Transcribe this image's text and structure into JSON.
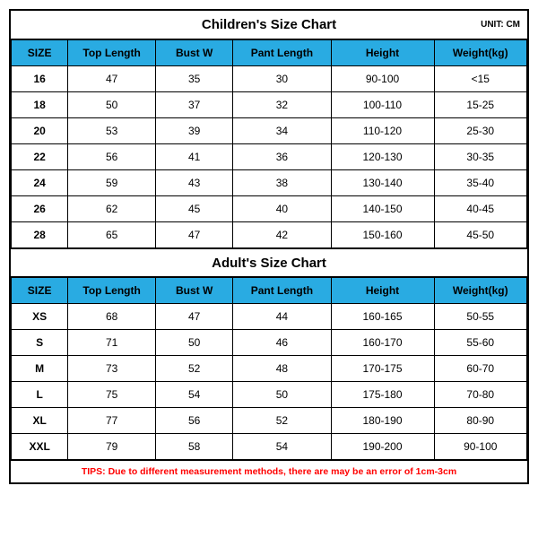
{
  "unit_label": "UNIT: CM",
  "header_bg": "#29abe2",
  "children": {
    "title": "Children's Size Chart",
    "columns": [
      "SIZE",
      "Top Length",
      "Bust W",
      "Pant Length",
      "Height",
      "Weight(kg)"
    ],
    "rows": [
      [
        "16",
        "47",
        "35",
        "30",
        "90-100",
        "<15"
      ],
      [
        "18",
        "50",
        "37",
        "32",
        "100-110",
        "15-25"
      ],
      [
        "20",
        "53",
        "39",
        "34",
        "110-120",
        "25-30"
      ],
      [
        "22",
        "56",
        "41",
        "36",
        "120-130",
        "30-35"
      ],
      [
        "24",
        "59",
        "43",
        "38",
        "130-140",
        "35-40"
      ],
      [
        "26",
        "62",
        "45",
        "40",
        "140-150",
        "40-45"
      ],
      [
        "28",
        "65",
        "47",
        "42",
        "150-160",
        "45-50"
      ]
    ]
  },
  "adult": {
    "title": "Adult's Size Chart",
    "columns": [
      "SIZE",
      "Top Length",
      "Bust W",
      "Pant Length",
      "Height",
      "Weight(kg)"
    ],
    "rows": [
      [
        "XS",
        "68",
        "47",
        "44",
        "160-165",
        "50-55"
      ],
      [
        "S",
        "71",
        "50",
        "46",
        "160-170",
        "55-60"
      ],
      [
        "M",
        "73",
        "52",
        "48",
        "170-175",
        "60-70"
      ],
      [
        "L",
        "75",
        "54",
        "50",
        "175-180",
        "70-80"
      ],
      [
        "XL",
        "77",
        "56",
        "52",
        "180-190",
        "80-90"
      ],
      [
        "XXL",
        "79",
        "58",
        "54",
        "190-200",
        "90-100"
      ]
    ]
  },
  "tips": "TIPS: Due to different measurement methods, there are may be an error of 1cm-3cm"
}
